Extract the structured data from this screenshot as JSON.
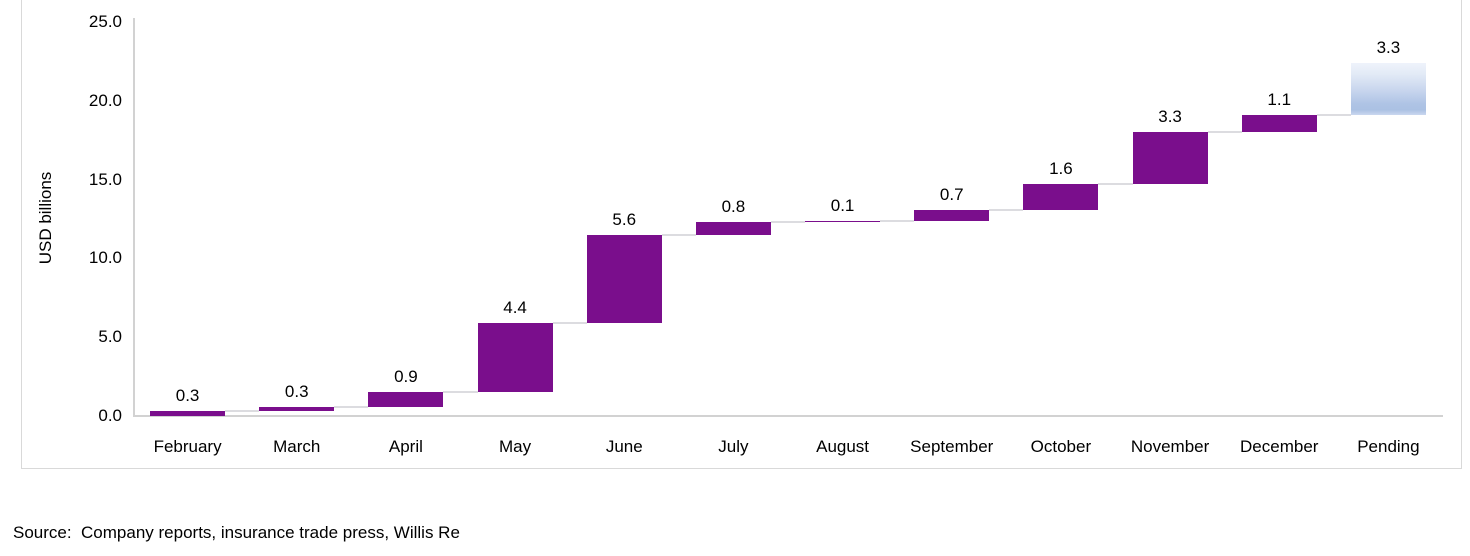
{
  "chart_data": {
    "type": "bar",
    "subtype": "waterfall",
    "title": "",
    "xlabel": "",
    "ylabel": "USD billions",
    "ylim": [
      0,
      25
    ],
    "ytick_values": [
      0,
      5,
      10,
      15,
      20,
      25
    ],
    "ytick_labels": [
      "0.0",
      "5.0",
      "10.0",
      "15.0",
      "20.0",
      "25.0"
    ],
    "grid": false,
    "legend": false,
    "categories": [
      "February",
      "March",
      "April",
      "May",
      "June",
      "July",
      "August",
      "September",
      "October",
      "November",
      "December",
      "Pending"
    ],
    "values": [
      0.3,
      0.3,
      0.9,
      4.4,
      5.6,
      0.8,
      0.1,
      0.7,
      1.6,
      3.3,
      1.1,
      3.3
    ],
    "value_labels": [
      "0.3",
      "0.3",
      "0.9",
      "4.4",
      "5.6",
      "0.8",
      "0.1",
      "0.7",
      "1.6",
      "3.3",
      "1.1",
      "3.3"
    ],
    "cumulative_start": [
      0,
      0.3,
      0.6,
      1.5,
      5.9,
      11.5,
      12.3,
      12.4,
      13.1,
      14.7,
      18.0,
      19.1
    ],
    "cumulative_end": [
      0.3,
      0.6,
      1.5,
      5.9,
      11.5,
      12.3,
      12.4,
      13.1,
      14.7,
      18.0,
      19.1,
      22.4
    ],
    "pending_category_index": 11,
    "colors": {
      "bar": "#7a0e8c",
      "pending_gradient": [
        "#eff3fb",
        "#e2eaf6",
        "#c6d4ed",
        "#afc4e5",
        "#abc1e3",
        "#cad7ef"
      ],
      "connector": "#dcdce0",
      "axis": "#d2d2d2",
      "chart_border": "#d9d9d9",
      "text": "#000000"
    }
  },
  "source_note": "Source:  Company reports, insurance trade press, Willis Re"
}
